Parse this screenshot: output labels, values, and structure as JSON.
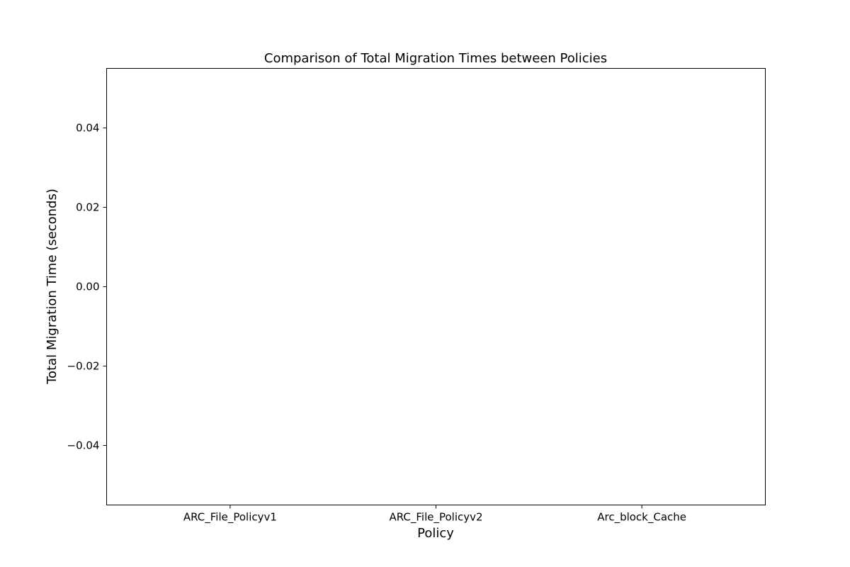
{
  "chart_data": {
    "type": "bar",
    "title": "Comparison of Total Migration Times between Policies",
    "xlabel": "Policy",
    "ylabel": "Total Migration Time (seconds)",
    "categories": [
      "ARC_File_Policyv1",
      "ARC_File_Policyv2",
      "Arc_block_Cache"
    ],
    "values": [
      0,
      0,
      0
    ],
    "ylim": [
      -0.055,
      0.055
    ],
    "yticks": [
      -0.04,
      -0.02,
      0.0,
      0.02,
      0.04
    ],
    "ytick_labels": [
      "−0.04",
      "−0.02",
      "0.00",
      "0.02",
      "0.04"
    ],
    "grid": false,
    "legend": "none"
  }
}
